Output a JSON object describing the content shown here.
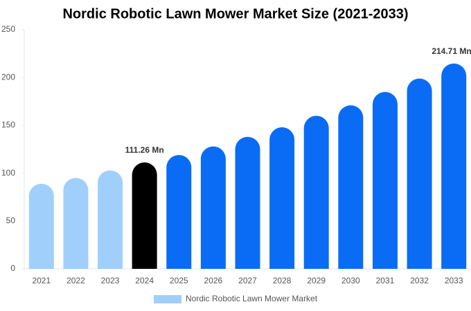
{
  "chart_data": {
    "type": "bar",
    "title": "Nordic Robotic Lawn Mower Market Size (2021-2033)",
    "categories": [
      "2021",
      "2022",
      "2023",
      "2024",
      "2025",
      "2026",
      "2027",
      "2028",
      "2029",
      "2030",
      "2031",
      "2032",
      "2033"
    ],
    "series": [
      {
        "name": "Nordic Robotic Lawn Mower Market",
        "color": "#a0cffc",
        "colors": [
          "#a0cffc",
          "#a0cffc",
          "#a0cffc",
          "#000000",
          "#0a6cf5",
          "#0a6cf5",
          "#0a6cf5",
          "#0a6cf5",
          "#0a6cf5",
          "#0a6cf5",
          "#0a6cf5",
          "#0a6cf5",
          "#0a6cf5"
        ],
        "values": [
          89,
          95,
          103,
          111.26,
          119,
          128,
          138,
          148,
          160,
          171,
          185,
          199,
          214.71
        ],
        "value_labels": [
          null,
          null,
          null,
          "111.26 Mn",
          null,
          null,
          null,
          null,
          null,
          null,
          null,
          null,
          "214.71 Mn"
        ]
      }
    ],
    "ylim": [
      0,
      250
    ],
    "yticks": [
      0,
      50,
      100,
      150,
      200,
      250
    ],
    "grid": false,
    "legend": "bottom"
  }
}
